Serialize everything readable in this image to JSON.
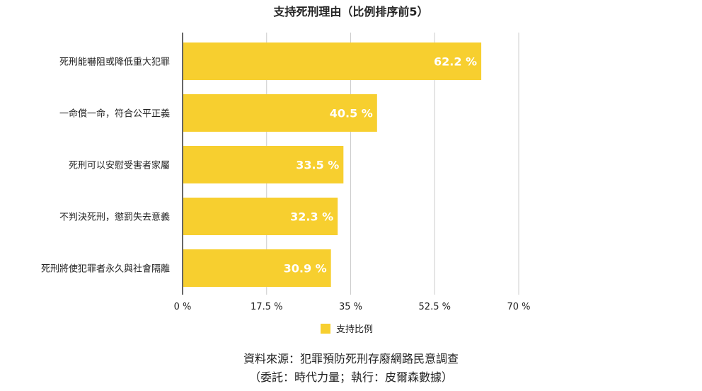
{
  "chart_data": {
    "type": "bar",
    "orientation": "horizontal",
    "title": "支持死刑理由（比例排序前5）",
    "categories": [
      "死刑能嚇阻或降低重大犯罪",
      "一命償一命，符合公平正義",
      "死刑可以安慰受害者家屬",
      "不判決死刑，懲罰失去意義",
      "死刑將使犯罪者永久與社會隔離"
    ],
    "series": [
      {
        "name": "支持比例",
        "values": [
          62.2,
          40.5,
          33.5,
          32.3,
          30.9
        ],
        "labels": [
          "62.2 %",
          "40.5 %",
          "33.5 %",
          "32.3 %",
          "30.9 %"
        ],
        "color": "#F7CF2F"
      }
    ],
    "xlim": [
      0,
      70
    ],
    "xticks": [
      0,
      17.5,
      35,
      52.5,
      70
    ],
    "xtick_labels": [
      "0 %",
      "17.5 %",
      "35 %",
      "52.5 %",
      "70 %"
    ],
    "grid": true,
    "legend": "bottom"
  },
  "source": {
    "line1": "資料來源：犯罪預防死刑存廢網路民意調查",
    "line2": "（委託：時代力量；執行：皮爾森數據）"
  },
  "colors": {
    "bar": "#F7CF2F",
    "grid": "#cccccc",
    "axis": "#333333",
    "bar_label": "#ffffff"
  }
}
